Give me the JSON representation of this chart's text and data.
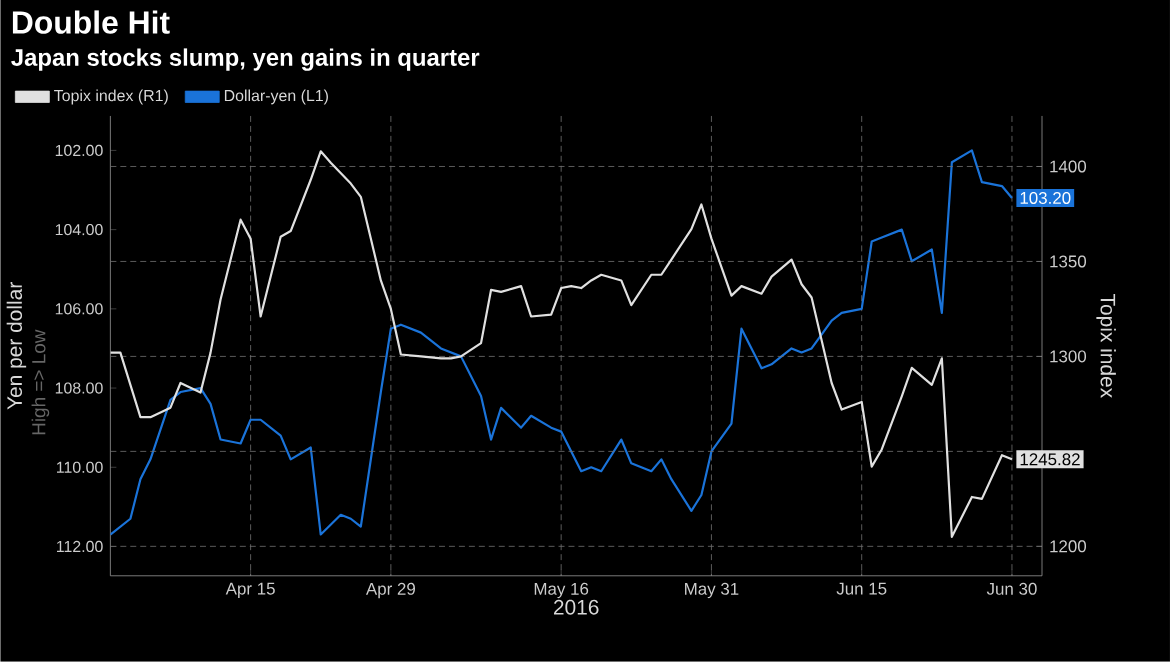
{
  "chart_data": {
    "type": "line",
    "title": "Double Hit",
    "subtitle": "Japan stocks slump, yen gains in quarter",
    "xlabel": "2016",
    "ylabel": "Yen per dollar",
    "y2label": "Topix index",
    "legend": "top left",
    "grid": true,
    "xlim": [
      "2016-04-01",
      "2016-07-03"
    ],
    "xticks": [
      {
        "value": "2016-04-15",
        "label": "Apr 15"
      },
      {
        "value": "2016-04-29",
        "label": "Apr 29"
      },
      {
        "value": "2016-05-16",
        "label": "May 16"
      },
      {
        "value": "2016-05-31",
        "label": "May 31"
      },
      {
        "value": "2016-06-15",
        "label": "Jun 15"
      },
      {
        "value": "2016-06-30",
        "label": "Jun 30"
      }
    ],
    "ylim": [
      112.74,
      101.13
    ],
    "yticks": [
      {
        "value": 102,
        "label": "102.00"
      },
      {
        "value": 104,
        "label": "104.00"
      },
      {
        "value": 106,
        "label": "106.00"
      },
      {
        "value": 108,
        "label": "108.00"
      },
      {
        "value": 110,
        "label": "110.00"
      },
      {
        "value": 112,
        "label": "112.00"
      }
    ],
    "y2lim": [
      1184.5,
      1426.6
    ],
    "y2ticks": [
      1200,
      {
        "value": 1250,
        "label": null
      },
      1300,
      1350,
      1400
    ],
    "annotations": [
      "High => Low"
    ],
    "series": [
      {
        "name": "Topix index (R1)",
        "color": "#e0e0e0",
        "axis": "y2",
        "x": [
          "2016-04-01",
          "2016-04-02",
          "2016-04-04",
          "2016-04-05",
          "2016-04-07",
          "2016-04-08",
          "2016-04-10",
          "2016-04-11",
          "2016-04-12",
          "2016-04-14",
          "2016-04-15",
          "2016-04-16",
          "2016-04-18",
          "2016-04-19",
          "2016-04-21",
          "2016-04-22",
          "2016-04-23",
          "2016-04-25",
          "2016-04-26",
          "2016-04-28",
          "2016-04-29",
          "2016-04-30",
          "2016-05-02",
          "2016-05-04",
          "2016-05-05",
          "2016-05-06",
          "2016-05-08",
          "2016-05-09",
          "2016-05-10",
          "2016-05-12",
          "2016-05-13",
          "2016-05-15",
          "2016-05-16",
          "2016-05-17",
          "2016-05-18",
          "2016-05-19",
          "2016-05-20",
          "2016-05-22",
          "2016-05-23",
          "2016-05-25",
          "2016-05-26",
          "2016-05-27",
          "2016-05-29",
          "2016-05-30",
          "2016-05-31",
          "2016-06-02",
          "2016-06-03",
          "2016-06-05",
          "2016-06-06",
          "2016-06-08",
          "2016-06-09",
          "2016-06-10",
          "2016-06-12",
          "2016-06-13",
          "2016-06-15",
          "2016-06-16",
          "2016-06-17",
          "2016-06-19",
          "2016-06-20",
          "2016-06-22",
          "2016-06-23",
          "2016-06-24",
          "2016-06-26",
          "2016-06-27",
          "2016-06-29",
          "2016-06-30"
        ],
        "value_labels": [
          null,
          null,
          null,
          null,
          null,
          null,
          null,
          null,
          null,
          null,
          null,
          null,
          null,
          null,
          null,
          null,
          null,
          null,
          null,
          null,
          null,
          null,
          null,
          null,
          null,
          null,
          null,
          null,
          null,
          null,
          null,
          null,
          null,
          null,
          null,
          null,
          null,
          null,
          null,
          null,
          null,
          null,
          null,
          null,
          null,
          null,
          null,
          null,
          null,
          null,
          null,
          null,
          null,
          null,
          null,
          null,
          null,
          null,
          null,
          null,
          null,
          null,
          null,
          null,
          null,
          "1245.82"
        ],
        "values": [
          1302,
          1302,
          1268,
          1268,
          1273,
          1286,
          1281,
          1302,
          1330,
          1372,
          1362,
          1321,
          1363,
          1366,
          1393,
          1408,
          1402,
          1391,
          1384,
          1340,
          1325,
          1301,
          1300,
          1299,
          1299,
          1300,
          1307,
          1335,
          1334,
          1337,
          1321,
          1322,
          1336,
          1337,
          1336,
          1340,
          1343,
          1340,
          1327,
          1343,
          1343,
          1351,
          1367,
          1380,
          1362,
          1332,
          1337,
          1333,
          1342,
          1351,
          1338,
          1331,
          1286,
          1272,
          1276,
          1242,
          1251,
          1279,
          1294,
          1285,
          1299,
          1205,
          1226,
          1225,
          1248,
          1245.82
        ]
      },
      {
        "name": "Dollar-yen (L1)",
        "color": "#1a73d9",
        "axis": "y",
        "x": [
          "2016-04-01",
          "2016-04-03",
          "2016-04-04",
          "2016-04-05",
          "2016-04-07",
          "2016-04-08",
          "2016-04-10",
          "2016-04-11",
          "2016-04-12",
          "2016-04-14",
          "2016-04-15",
          "2016-04-16",
          "2016-04-18",
          "2016-04-19",
          "2016-04-21",
          "2016-04-22",
          "2016-04-24",
          "2016-04-25",
          "2016-04-26",
          "2016-04-28",
          "2016-04-29",
          "2016-04-30",
          "2016-05-02",
          "2016-05-04",
          "2016-05-06",
          "2016-05-08",
          "2016-05-09",
          "2016-05-10",
          "2016-05-12",
          "2016-05-13",
          "2016-05-15",
          "2016-05-16",
          "2016-05-18",
          "2016-05-19",
          "2016-05-20",
          "2016-05-22",
          "2016-05-23",
          "2016-05-25",
          "2016-05-26",
          "2016-05-27",
          "2016-05-29",
          "2016-05-30",
          "2016-05-31",
          "2016-06-02",
          "2016-06-03",
          "2016-06-05",
          "2016-06-06",
          "2016-06-08",
          "2016-06-09",
          "2016-06-10",
          "2016-06-12",
          "2016-06-13",
          "2016-06-15",
          "2016-06-16",
          "2016-06-17",
          "2016-06-19",
          "2016-06-20",
          "2016-06-22",
          "2016-06-23",
          "2016-06-24",
          "2016-06-26",
          "2016-06-27",
          "2016-06-29",
          "2016-06-30"
        ],
        "value_labels": [
          null,
          null,
          null,
          null,
          null,
          null,
          null,
          null,
          null,
          null,
          null,
          null,
          null,
          null,
          null,
          null,
          null,
          null,
          null,
          null,
          null,
          null,
          null,
          null,
          null,
          null,
          null,
          null,
          null,
          null,
          null,
          null,
          null,
          null,
          null,
          null,
          null,
          null,
          null,
          null,
          null,
          null,
          null,
          null,
          null,
          null,
          null,
          null,
          null,
          null,
          null,
          null,
          null,
          null,
          null,
          null,
          null,
          null,
          null,
          null,
          null,
          null,
          null,
          "103.20"
        ],
        "values": [
          111.7,
          111.3,
          110.3,
          109.8,
          108.3,
          108.1,
          108.0,
          108.4,
          109.3,
          109.4,
          108.8,
          108.8,
          109.2,
          109.8,
          109.5,
          111.7,
          111.2,
          111.3,
          111.5,
          108.1,
          106.5,
          106.4,
          106.6,
          107.0,
          107.2,
          108.2,
          109.3,
          108.5,
          109.0,
          108.7,
          109.0,
          109.1,
          110.1,
          110.0,
          110.1,
          109.3,
          109.9,
          110.1,
          109.8,
          110.3,
          111.1,
          110.7,
          109.6,
          108.9,
          106.5,
          107.5,
          107.4,
          107.0,
          107.1,
          107.0,
          106.3,
          106.1,
          106.0,
          104.3,
          104.2,
          104.0,
          104.8,
          104.5,
          106.1,
          102.3,
          102.0,
          102.8,
          102.9,
          103.2
        ]
      }
    ]
  }
}
